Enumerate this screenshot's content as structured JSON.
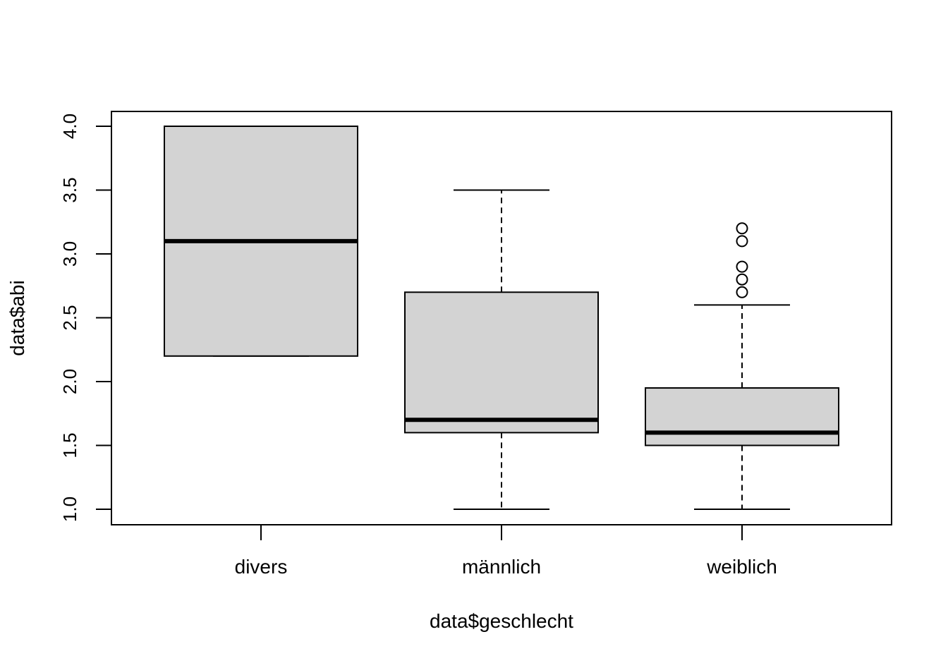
{
  "chart_data": {
    "type": "boxplot",
    "xlabel": "data$geschlecht",
    "ylabel": "data$abi",
    "ylim": [
      1.0,
      4.0
    ],
    "yticks": [
      1.0,
      1.5,
      2.0,
      2.5,
      3.0,
      3.5,
      4.0
    ],
    "ytick_labels": [
      "1.0",
      "1.5",
      "2.0",
      "2.5",
      "3.0",
      "3.5",
      "4.0"
    ],
    "categories": [
      "divers",
      "männlich",
      "weiblich"
    ],
    "series": [
      {
        "whisker_low": 2.2,
        "q1": 2.2,
        "median": 3.1,
        "q3": 4.0,
        "whisker_high": 4.0,
        "outliers": []
      },
      {
        "whisker_low": 1.0,
        "q1": 1.6,
        "median": 1.7,
        "q3": 2.7,
        "whisker_high": 3.5,
        "outliers": []
      },
      {
        "whisker_low": 1.0,
        "q1": 1.5,
        "median": 1.6,
        "q3": 1.95,
        "whisker_high": 2.6,
        "outliers": [
          2.7,
          2.8,
          2.9,
          3.1,
          3.2
        ]
      }
    ],
    "box_fill": "#d3d3d3",
    "line_color": "#000000",
    "grid": false
  }
}
